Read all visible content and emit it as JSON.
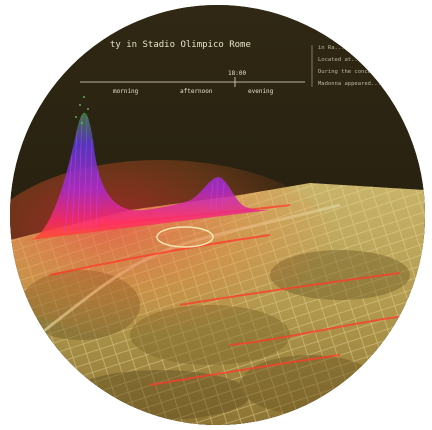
{
  "visualization": {
    "title": "ty in Stadio Olimpico Rome",
    "time_marker": "18:00",
    "time_axis_labels": [
      "morning",
      "afternoon",
      "evening"
    ],
    "side_notes": [
      "in Ra...",
      "Located at...",
      "During the concert...",
      "Madonna appeared..."
    ]
  },
  "colors": {
    "sky": "#2a2212",
    "terrain_light": "#cdb96a",
    "terrain_dark": "#6e5a26",
    "activity_peak": "#7a2bd8",
    "activity_mid": "#e0306e",
    "activity_low": "#ff4a2a"
  }
}
